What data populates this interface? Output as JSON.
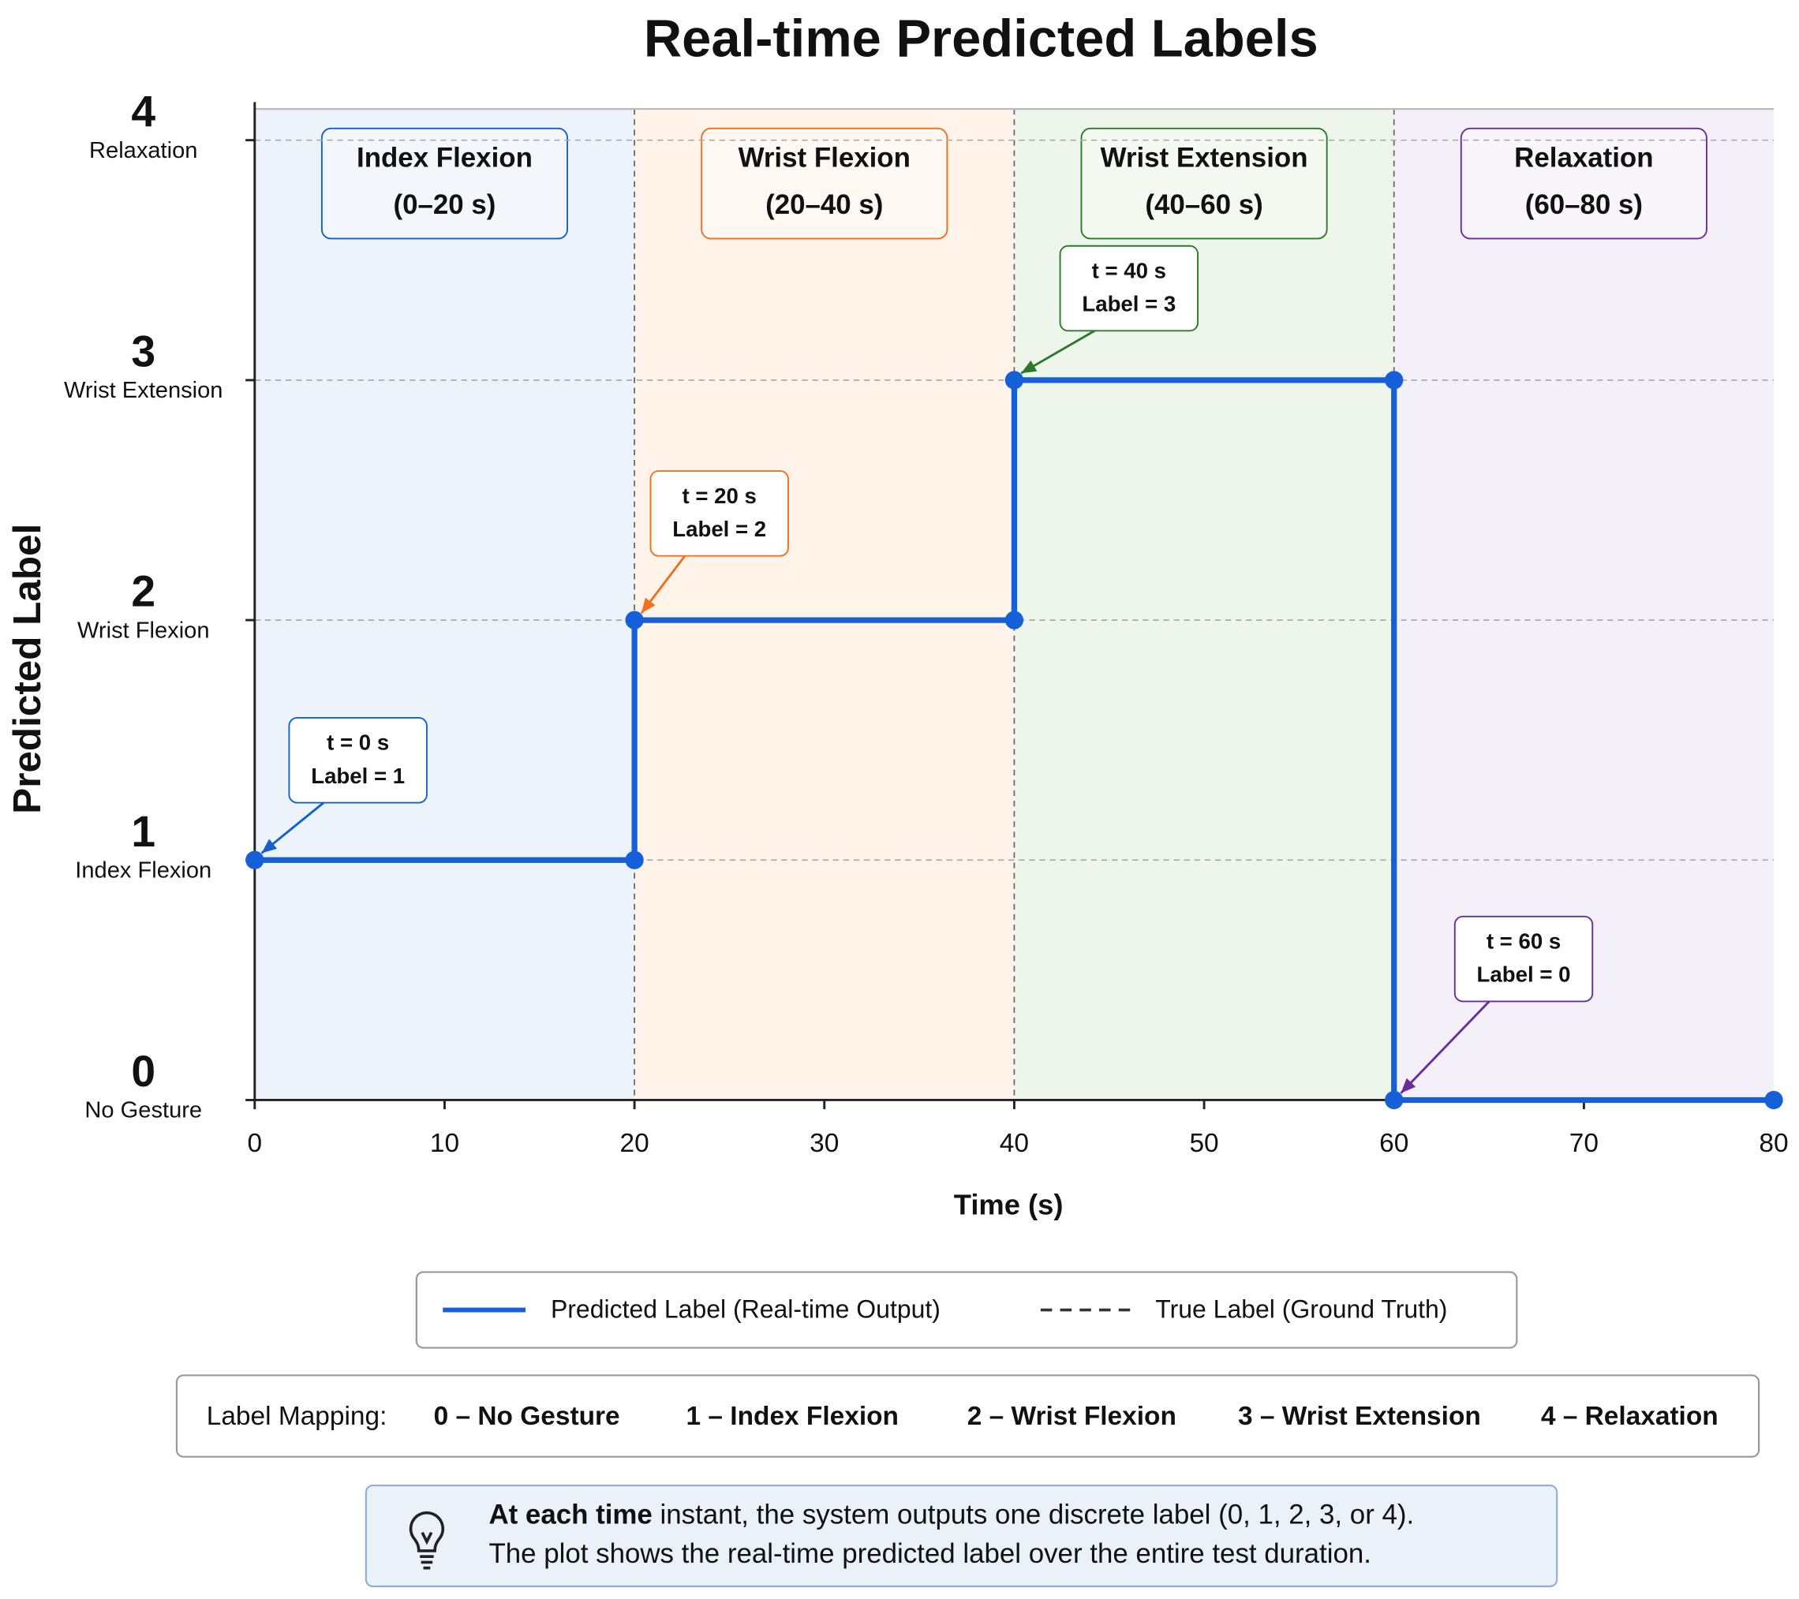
{
  "chart_data": {
    "type": "line",
    "title": "Real-time Predicted Labels",
    "x_label": "Time (s)",
    "y_label": "Predicted Label",
    "xlim": [
      0,
      80
    ],
    "xticks": [
      0,
      10,
      20,
      30,
      40,
      50,
      60,
      70,
      80
    ],
    "ylim": [
      0,
      4.13
    ],
    "yticks": [
      0,
      1,
      2,
      3,
      4
    ],
    "ytick_names": [
      "No Gesture",
      "Index Flexion",
      "Wrist Flexion",
      "Wrist Extension",
      "Relaxation"
    ],
    "ytick_colors": [
      "#6a2c9c",
      "#1560c8",
      "#f07020",
      "#2a8a2a",
      "#6a2c9c"
    ],
    "grid": true,
    "series": [
      {
        "name": "Predicted Label (Real-time Output)",
        "color": "#1560d8",
        "x": [
          0,
          20,
          20,
          40,
          40,
          60,
          60,
          80
        ],
        "values": [
          1,
          1,
          2,
          2,
          3,
          3,
          0,
          0
        ]
      }
    ],
    "true_label": {
      "name": "True Label (Ground Truth)",
      "color": "#333333",
      "style": "dashed"
    },
    "regions": [
      {
        "start": 0,
        "end": 20,
        "label": "Index Flexion",
        "range": "(0–20 s)",
        "color": "#1560c8",
        "fill": "#edf3fa"
      },
      {
        "start": 20,
        "end": 40,
        "label": "Wrist Flexion",
        "range": "(20–40 s)",
        "color": "#f07020",
        "fill": "#fff3ea"
      },
      {
        "start": 40,
        "end": 60,
        "label": "Wrist Extension",
        "range": "(40–60 s)",
        "color": "#2a7a2a",
        "fill": "#eef6ec"
      },
      {
        "start": 60,
        "end": 80,
        "label": "Relaxation",
        "range": "(60–80 s)",
        "color": "#6a2c9c",
        "fill": "#f4f0f9"
      }
    ],
    "annotations": [
      {
        "x": 0,
        "y": 1,
        "lines": [
          "t = 0 s",
          "Label = 1"
        ],
        "color": "#1560c8"
      },
      {
        "x": 20,
        "y": 2,
        "lines": [
          "t = 20 s",
          "Label = 2"
        ],
        "color": "#f07020"
      },
      {
        "x": 40,
        "y": 3,
        "lines": [
          "t = 40 s",
          "Label = 3"
        ],
        "color": "#2a7a2a"
      },
      {
        "x": 60,
        "y": 0,
        "lines": [
          "t = 60 s",
          "Label = 0"
        ],
        "color": "#6a2c9c"
      }
    ]
  },
  "label_mapping": {
    "title": "Label Mapping:",
    "items": [
      {
        "text": "0 – No Gesture",
        "color": "#6a2c9c"
      },
      {
        "text": "1 – Index Flexion",
        "color": "#1560c8"
      },
      {
        "text": "2 – Wrist Flexion",
        "color": "#f07020"
      },
      {
        "text": "3 – Wrist Extension",
        "color": "#2a8a2a"
      },
      {
        "text": "4 – Relaxation",
        "color": "#7a3ab0"
      }
    ]
  },
  "note": {
    "bold": "At each time",
    "rest": " instant, the system outputs one discrete label (0, 1, 2, 3, or 4).",
    "line2": "The plot shows the real-time predicted label over the entire test duration."
  }
}
